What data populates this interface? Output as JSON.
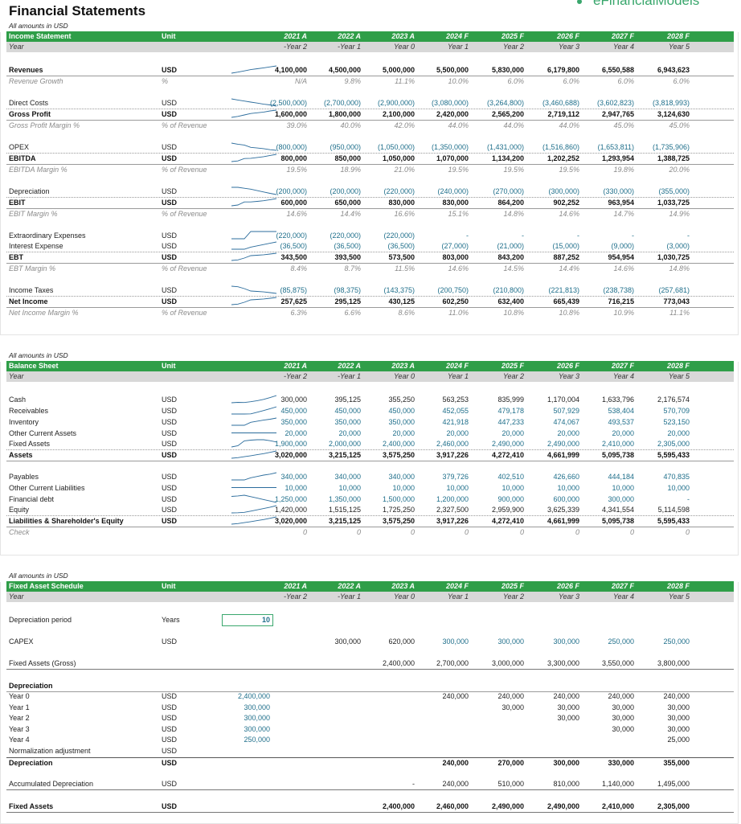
{
  "title": "Financial Statements",
  "brand": "eFinancialModels",
  "colors": {
    "header_green": "#2f9e48",
    "teal_values": "#1f6f8b",
    "spark": "#2b6c9c"
  },
  "columns": {
    "years": [
      "2021 A",
      "2022 A",
      "2023 A",
      "2024 F",
      "2025 F",
      "2026 F",
      "2027 F",
      "2028 F"
    ],
    "periods": [
      "-Year 2",
      "-Year 1",
      "Year 0",
      "Year 1",
      "Year 2",
      "Year 3",
      "Year 4",
      "Year 5"
    ]
  },
  "income_statement": {
    "note": "All amounts in USD",
    "header": "Income Statement",
    "unit_header": "Unit",
    "subheader": "Year",
    "rows": [
      {
        "label": "Revenues",
        "unit": "USD",
        "values": [
          "4,100,000",
          "4,500,000",
          "5,000,000",
          "5,500,000",
          "5,830,000",
          "6,179,800",
          "6,550,588",
          "6,943,623"
        ],
        "style": "bold teal-bold"
      },
      {
        "label": "Revenue Growth",
        "unit": "%",
        "values": [
          "N/A",
          "9.8%",
          "11.1%",
          "10.0%",
          "6.0%",
          "6.0%",
          "6.0%",
          "6.0%"
        ],
        "style": "ital"
      },
      {
        "label": "Direct Costs",
        "unit": "USD",
        "values": [
          "(2,500,000)",
          "(2,700,000)",
          "(2,900,000)",
          "(3,080,000)",
          "(3,264,800)",
          "(3,460,688)",
          "(3,602,823)",
          "(3,818,993)"
        ],
        "style": "teal"
      },
      {
        "label": "Gross Profit",
        "unit": "USD",
        "values": [
          "1,600,000",
          "1,800,000",
          "2,100,000",
          "2,420,000",
          "2,565,200",
          "2,719,112",
          "2,947,765",
          "3,124,630"
        ],
        "style": "bold"
      },
      {
        "label": "Gross Profit Margin %",
        "unit": "% of Revenue",
        "values": [
          "39.0%",
          "40.0%",
          "42.0%",
          "44.0%",
          "44.0%",
          "44.0%",
          "45.0%",
          "45.0%"
        ],
        "style": "ital"
      },
      {
        "label": "OPEX",
        "unit": "USD",
        "values": [
          "(800,000)",
          "(950,000)",
          "(1,050,000)",
          "(1,350,000)",
          "(1,431,000)",
          "(1,516,860)",
          "(1,653,811)",
          "(1,735,906)"
        ],
        "style": "teal"
      },
      {
        "label": "EBITDA",
        "unit": "USD",
        "values": [
          "800,000",
          "850,000",
          "1,050,000",
          "1,070,000",
          "1,134,200",
          "1,202,252",
          "1,293,954",
          "1,388,725"
        ],
        "style": "bold"
      },
      {
        "label": "EBITDA Margin %",
        "unit": "% of Revenue",
        "values": [
          "19.5%",
          "18.9%",
          "21.0%",
          "19.5%",
          "19.5%",
          "19.5%",
          "19.8%",
          "20.0%"
        ],
        "style": "ital"
      },
      {
        "label": "Depreciation",
        "unit": "USD",
        "values": [
          "(200,000)",
          "(200,000)",
          "(220,000)",
          "(240,000)",
          "(270,000)",
          "(300,000)",
          "(330,000)",
          "(355,000)"
        ],
        "style": "teal"
      },
      {
        "label": "EBIT",
        "unit": "USD",
        "values": [
          "600,000",
          "650,000",
          "830,000",
          "830,000",
          "864,200",
          "902,252",
          "963,954",
          "1,033,725"
        ],
        "style": "bold"
      },
      {
        "label": "EBIT Margin %",
        "unit": "% of Revenue",
        "values": [
          "14.6%",
          "14.4%",
          "16.6%",
          "15.1%",
          "14.8%",
          "14.6%",
          "14.7%",
          "14.9%"
        ],
        "style": "ital"
      },
      {
        "label": "Extraordinary Expenses",
        "unit": "USD",
        "values": [
          "(220,000)",
          "(220,000)",
          "(220,000)",
          "-",
          "-",
          "-",
          "-",
          "-"
        ],
        "style": "teal"
      },
      {
        "label": "Interest Expense",
        "unit": "USD",
        "values": [
          "(36,500)",
          "(36,500)",
          "(36,500)",
          "(27,000)",
          "(21,000)",
          "(15,000)",
          "(9,000)",
          "(3,000)"
        ],
        "style": "teal"
      },
      {
        "label": "EBT",
        "unit": "USD",
        "values": [
          "343,500",
          "393,500",
          "573,500",
          "803,000",
          "843,200",
          "887,252",
          "954,954",
          "1,030,725"
        ],
        "style": "bold"
      },
      {
        "label": "EBT Margin %",
        "unit": "% of Revenue",
        "values": [
          "8.4%",
          "8.7%",
          "11.5%",
          "14.6%",
          "14.5%",
          "14.4%",
          "14.6%",
          "14.8%"
        ],
        "style": "ital"
      },
      {
        "label": "Income Taxes",
        "unit": "USD",
        "values": [
          "(85,875)",
          "(98,375)",
          "(143,375)",
          "(200,750)",
          "(210,800)",
          "(221,813)",
          "(238,738)",
          "(257,681)"
        ],
        "style": "teal"
      },
      {
        "label": "Net Income",
        "unit": "USD",
        "values": [
          "257,625",
          "295,125",
          "430,125",
          "602,250",
          "632,400",
          "665,439",
          "716,215",
          "773,043"
        ],
        "style": "bold"
      },
      {
        "label": "Net Income Margin %",
        "unit": "% of Revenue",
        "values": [
          "6.3%",
          "6.6%",
          "8.6%",
          "11.0%",
          "10.8%",
          "10.8%",
          "10.9%",
          "11.1%"
        ],
        "style": "ital"
      }
    ]
  },
  "balance_sheet": {
    "note": "All amounts in USD",
    "header": "Balance Sheet",
    "unit_header": "Unit",
    "subheader": "Year",
    "rows": [
      {
        "label": "Cash",
        "unit": "USD",
        "values": [
          "300,000",
          "395,125",
          "355,250",
          "563,253",
          "835,999",
          "1,170,004",
          "1,633,796",
          "2,176,574"
        ],
        "style": ""
      },
      {
        "label": "Receivables",
        "unit": "USD",
        "values": [
          "450,000",
          "450,000",
          "450,000",
          "452,055",
          "479,178",
          "507,929",
          "538,404",
          "570,709"
        ],
        "style": "teal"
      },
      {
        "label": "Inventory",
        "unit": "USD",
        "values": [
          "350,000",
          "350,000",
          "350,000",
          "421,918",
          "447,233",
          "474,067",
          "493,537",
          "523,150"
        ],
        "style": "teal"
      },
      {
        "label": "Other Current Assets",
        "unit": "USD",
        "values": [
          "20,000",
          "20,000",
          "20,000",
          "20,000",
          "20,000",
          "20,000",
          "20,000",
          "20,000"
        ],
        "style": "teal"
      },
      {
        "label": "Fixed Assets",
        "unit": "USD",
        "values": [
          "1,900,000",
          "2,000,000",
          "2,400,000",
          "2,460,000",
          "2,490,000",
          "2,490,000",
          "2,410,000",
          "2,305,000"
        ],
        "style": "teal"
      },
      {
        "label": "Assets",
        "unit": "USD",
        "values": [
          "3,020,000",
          "3,215,125",
          "3,575,250",
          "3,917,226",
          "4,272,410",
          "4,661,999",
          "5,095,738",
          "5,595,433"
        ],
        "style": "bold"
      },
      {
        "label": "Payables",
        "unit": "USD",
        "values": [
          "340,000",
          "340,000",
          "340,000",
          "379,726",
          "402,510",
          "426,660",
          "444,184",
          "470,835"
        ],
        "style": "teal"
      },
      {
        "label": "Other Current Liabilities",
        "unit": "USD",
        "values": [
          "10,000",
          "10,000",
          "10,000",
          "10,000",
          "10,000",
          "10,000",
          "10,000",
          "10,000"
        ],
        "style": "teal"
      },
      {
        "label": "Financial debt",
        "unit": "USD",
        "values": [
          "1,250,000",
          "1,350,000",
          "1,500,000",
          "1,200,000",
          "900,000",
          "600,000",
          "300,000",
          "-"
        ],
        "style": "teal"
      },
      {
        "label": "Equity",
        "unit": "USD",
        "values": [
          "1,420,000",
          "1,515,125",
          "1,725,250",
          "2,327,500",
          "2,959,900",
          "3,625,339",
          "4,341,554",
          "5,114,598"
        ],
        "style": ""
      },
      {
        "label": "Liabilities & Shareholder's Equity",
        "unit": "USD",
        "values": [
          "3,020,000",
          "3,215,125",
          "3,575,250",
          "3,917,226",
          "4,272,410",
          "4,661,999",
          "5,095,738",
          "5,595,433"
        ],
        "style": "bold"
      },
      {
        "label": "Check",
        "unit": "",
        "values": [
          "0",
          "0",
          "0",
          "0",
          "0",
          "0",
          "0",
          "0"
        ],
        "style": "ital"
      }
    ]
  },
  "fixed_asset_schedule": {
    "note": "All amounts in USD",
    "header": "Fixed Asset Schedule",
    "unit_header": "Unit",
    "subheader": "Year",
    "dep_period": {
      "label": "Depreciation period",
      "unit": "Years",
      "value": "10"
    },
    "capex": {
      "label": "CAPEX",
      "unit": "USD",
      "values": [
        "",
        "300,000",
        "620,000",
        "300,000",
        "300,000",
        "300,000",
        "250,000",
        "250,000"
      ]
    },
    "gross": {
      "label": "Fixed Assets (Gross)",
      "unit": "",
      "values": [
        "",
        "",
        "2,400,000",
        "2,700,000",
        "3,000,000",
        "3,300,000",
        "3,550,000",
        "3,800,000"
      ]
    },
    "dep_title": "Depreciation",
    "dep_rows": [
      {
        "label": "Year 0",
        "unit": "USD",
        "base": "2,400,000",
        "values": [
          "",
          "",
          "",
          "240,000",
          "240,000",
          "240,000",
          "240,000",
          "240,000"
        ]
      },
      {
        "label": "Year 1",
        "unit": "USD",
        "base": "300,000",
        "values": [
          "",
          "",
          "",
          "",
          "30,000",
          "30,000",
          "30,000",
          "30,000"
        ]
      },
      {
        "label": "Year 2",
        "unit": "USD",
        "base": "300,000",
        "values": [
          "",
          "",
          "",
          "",
          "",
          "30,000",
          "30,000",
          "30,000"
        ]
      },
      {
        "label": "Year 3",
        "unit": "USD",
        "base": "300,000",
        "values": [
          "",
          "",
          "",
          "",
          "",
          "",
          "30,000",
          "30,000"
        ]
      },
      {
        "label": "Year 4",
        "unit": "USD",
        "base": "250,000",
        "values": [
          "",
          "",
          "",
          "",
          "",
          "",
          "",
          "25,000"
        ]
      },
      {
        "label": "Normalization adjustment",
        "unit": "USD",
        "base": "",
        "values": [
          "",
          "",
          "",
          "",
          "",
          "",
          "",
          ""
        ]
      }
    ],
    "dep_total": {
      "label": "Depreciation",
      "unit": "USD",
      "values": [
        "",
        "",
        "",
        "240,000",
        "270,000",
        "300,000",
        "330,000",
        "355,000"
      ]
    },
    "accum": {
      "label": "Accumulated Depreciation",
      "unit": "USD",
      "values": [
        "",
        "",
        "-",
        "240,000",
        "510,000",
        "810,000",
        "1,140,000",
        "1,495,000"
      ]
    },
    "fixed": {
      "label": "Fixed Assets",
      "unit": "USD",
      "values": [
        "",
        "",
        "2,400,000",
        "2,460,000",
        "2,490,000",
        "2,490,000",
        "2,410,000",
        "2,305,000"
      ]
    }
  }
}
